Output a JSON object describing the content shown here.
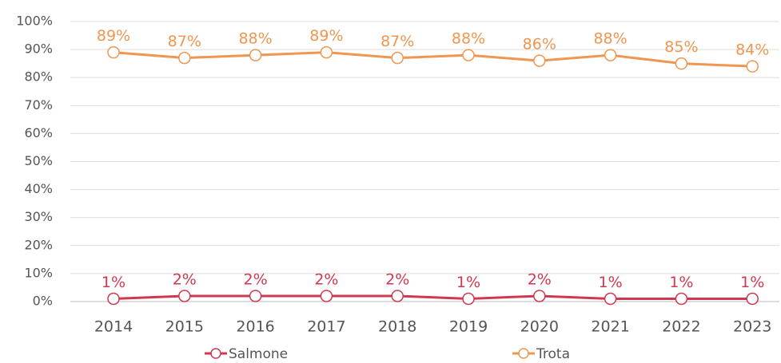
{
  "chart_data": {
    "type": "line",
    "categories": [
      "2014",
      "2015",
      "2016",
      "2017",
      "2018",
      "2019",
      "2020",
      "2021",
      "2022",
      "2023"
    ],
    "series": [
      {
        "name": "Salmone",
        "color": "#d0384f",
        "values": [
          1,
          2,
          2,
          2,
          2,
          1,
          2,
          1,
          1,
          1
        ],
        "value_labels": [
          "1%",
          "2%",
          "2%",
          "2%",
          "2%",
          "1%",
          "2%",
          "1%",
          "1%",
          "1%"
        ]
      },
      {
        "name": "Trota",
        "color": "#ef9650",
        "values": [
          89,
          87,
          88,
          89,
          87,
          88,
          86,
          88,
          85,
          84
        ],
        "value_labels": [
          "89%",
          "87%",
          "88%",
          "89%",
          "87%",
          "88%",
          "86%",
          "88%",
          "85%",
          "84%"
        ]
      }
    ],
    "ylim": [
      0,
      100
    ],
    "yticks": [
      {
        "value": 0,
        "label": "0%"
      },
      {
        "value": 10,
        "label": "10%"
      },
      {
        "value": 20,
        "label": "20%"
      },
      {
        "value": 30,
        "label": "30%"
      },
      {
        "value": 40,
        "label": "40%"
      },
      {
        "value": 50,
        "label": "50%"
      },
      {
        "value": 60,
        "label": "60%"
      },
      {
        "value": 70,
        "label": "70%"
      },
      {
        "value": 80,
        "label": "80%"
      },
      {
        "value": 90,
        "label": "90%"
      },
      {
        "value": 100,
        "label": "100%"
      }
    ],
    "grid": true,
    "legend": "bottom"
  }
}
